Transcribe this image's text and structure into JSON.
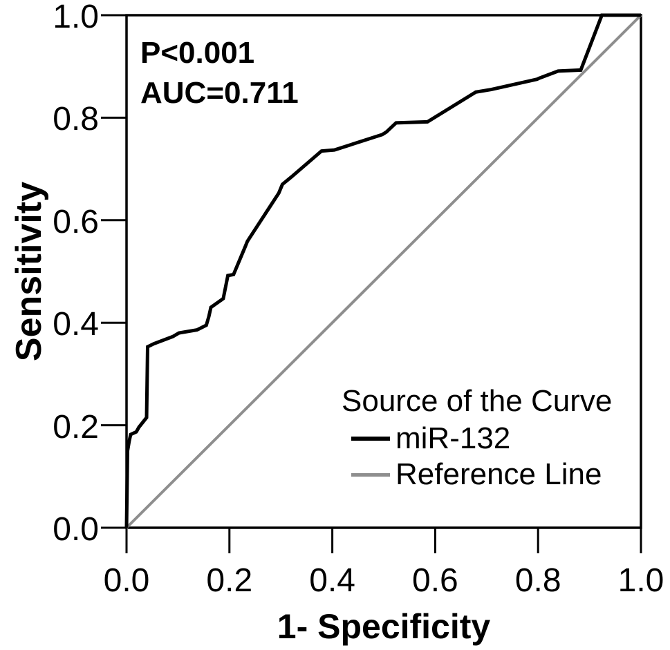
{
  "chart_data": {
    "type": "line",
    "subtype": "roc-curve",
    "title": "",
    "xlabel": "1- Specificity",
    "ylabel": "Sensitivity",
    "xlim": [
      0,
      1
    ],
    "ylim": [
      0,
      1
    ],
    "grid": false,
    "x_tick_labels": [
      "0.0",
      "0.2",
      "0.4",
      "0.6",
      "0.8",
      "1.0"
    ],
    "y_tick_labels": [
      "0.0",
      "0.2",
      "0.4",
      "0.6",
      "0.8",
      "1.0"
    ],
    "annotation": {
      "line1": "P<0.001",
      "line2": "AUC=0.711"
    },
    "legend": {
      "position": "inside-bottom-right",
      "title": "Source of the Curve",
      "items": [
        {
          "label": "miR-132",
          "color": "#000000",
          "thickness": 6
        },
        {
          "label": "Reference Line",
          "color": "#8e8e8e",
          "thickness": 5
        }
      ]
    },
    "series": [
      {
        "name": "miR-132",
        "color": "#000000",
        "stroke_width": 5,
        "points": [
          [
            0.0,
            0.0
          ],
          [
            0.002,
            0.15
          ],
          [
            0.005,
            0.168
          ],
          [
            0.008,
            0.182
          ],
          [
            0.019,
            0.187
          ],
          [
            0.024,
            0.196
          ],
          [
            0.039,
            0.215
          ],
          [
            0.041,
            0.353
          ],
          [
            0.053,
            0.359
          ],
          [
            0.09,
            0.373
          ],
          [
            0.102,
            0.38
          ],
          [
            0.137,
            0.386
          ],
          [
            0.155,
            0.395
          ],
          [
            0.16,
            0.412
          ],
          [
            0.164,
            0.43
          ],
          [
            0.188,
            0.447
          ],
          [
            0.197,
            0.492
          ],
          [
            0.208,
            0.494
          ],
          [
            0.231,
            0.549
          ],
          [
            0.235,
            0.559
          ],
          [
            0.296,
            0.653
          ],
          [
            0.303,
            0.67
          ],
          [
            0.32,
            0.684
          ],
          [
            0.379,
            0.735
          ],
          [
            0.404,
            0.737
          ],
          [
            0.497,
            0.767
          ],
          [
            0.505,
            0.772
          ],
          [
            0.524,
            0.79
          ],
          [
            0.585,
            0.792
          ],
          [
            0.679,
            0.85
          ],
          [
            0.709,
            0.855
          ],
          [
            0.798,
            0.875
          ],
          [
            0.802,
            0.877
          ],
          [
            0.839,
            0.891
          ],
          [
            0.883,
            0.893
          ],
          [
            0.924,
            1.0
          ],
          [
            1.0,
            1.0
          ]
        ]
      },
      {
        "name": "Reference Line",
        "color": "#8e8e8e",
        "stroke_width": 4,
        "points": [
          [
            0,
            0
          ],
          [
            1,
            1
          ]
        ]
      }
    ]
  }
}
